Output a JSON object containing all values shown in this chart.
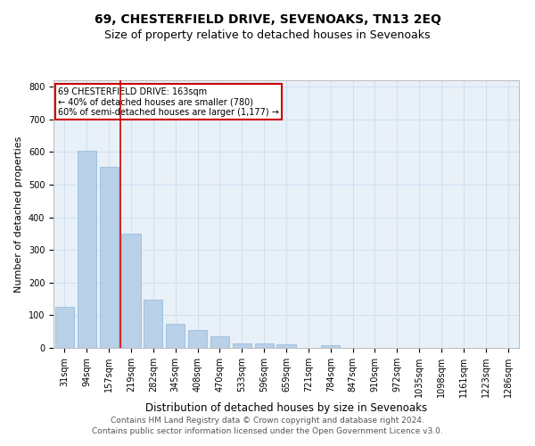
{
  "title": "69, CHESTERFIELD DRIVE, SEVENOAKS, TN13 2EQ",
  "subtitle": "Size of property relative to detached houses in Sevenoaks",
  "xlabel": "Distribution of detached houses by size in Sevenoaks",
  "ylabel": "Number of detached properties",
  "categories": [
    "31sqm",
    "94sqm",
    "157sqm",
    "219sqm",
    "282sqm",
    "345sqm",
    "408sqm",
    "470sqm",
    "533sqm",
    "596sqm",
    "659sqm",
    "721sqm",
    "784sqm",
    "847sqm",
    "910sqm",
    "972sqm",
    "1035sqm",
    "1098sqm",
    "1161sqm",
    "1223sqm",
    "1286sqm"
  ],
  "values": [
    125,
    605,
    555,
    350,
    148,
    75,
    55,
    35,
    15,
    13,
    12,
    0,
    8,
    0,
    0,
    0,
    0,
    0,
    0,
    0,
    0
  ],
  "bar_color": "#b8d0e8",
  "bar_edge_color": "#8fb8d8",
  "annotation_box_text": "69 CHESTERFIELD DRIVE: 163sqm\n← 40% of detached houses are smaller (780)\n60% of semi-detached houses are larger (1,177) →",
  "annotation_box_color": "#cc0000",
  "annotation_box_bg": "#ffffff",
  "vline_color": "#cc0000",
  "grid_color": "#d0dff0",
  "background_color": "#e8f0f8",
  "footer_line1": "Contains HM Land Registry data © Crown copyright and database right 2024.",
  "footer_line2": "Contains public sector information licensed under the Open Government Licence v3.0.",
  "ylim": [
    0,
    820
  ],
  "yticks": [
    0,
    100,
    200,
    300,
    400,
    500,
    600,
    700,
    800
  ],
  "title_fontsize": 10,
  "subtitle_fontsize": 9,
  "xlabel_fontsize": 8.5,
  "ylabel_fontsize": 8,
  "tick_fontsize": 7,
  "annotation_fontsize": 7,
  "footer_fontsize": 6.5
}
